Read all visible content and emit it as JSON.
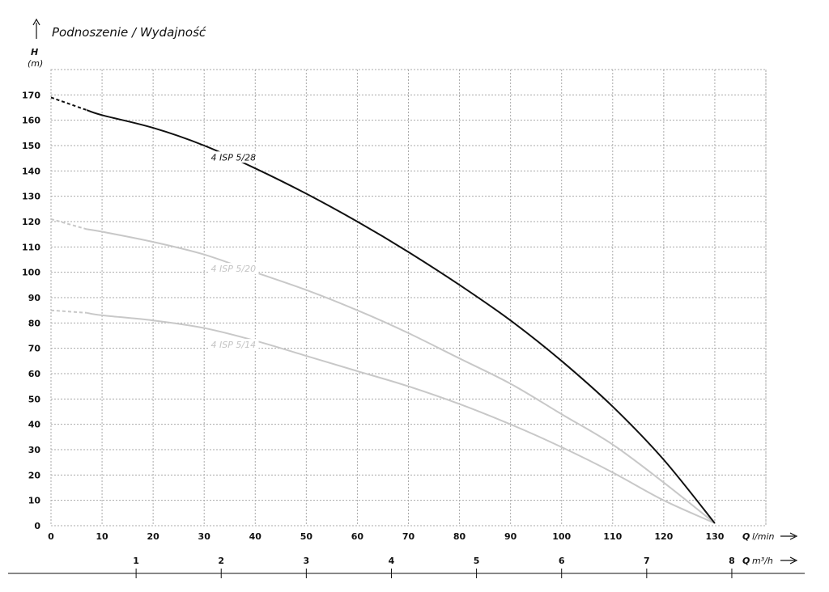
{
  "chart_data": {
    "type": "line",
    "title": "Podnoszenie / Wydajność",
    "ylabel": "H",
    "ylabel_unit": "(m)",
    "xlabel_prefix": "Q",
    "xlabel_unit": "l/min",
    "x2label_prefix": "Q",
    "x2label_unit": "m³/h",
    "xlim": [
      0,
      140
    ],
    "ylim": [
      0,
      180
    ],
    "x_ticks": [
      0,
      10,
      20,
      30,
      40,
      50,
      60,
      70,
      80,
      90,
      100,
      110,
      120,
      130
    ],
    "y_ticks": [
      0,
      10,
      20,
      30,
      40,
      50,
      60,
      70,
      80,
      90,
      100,
      110,
      120,
      130,
      140,
      150,
      160,
      170
    ],
    "x2_ticks": [
      1,
      2,
      3,
      4,
      5,
      6,
      7,
      8
    ],
    "grid": true,
    "series": [
      {
        "name": "4 ISP 5/28",
        "color": "#111111",
        "dashed_until": 7,
        "label_at": [
          31,
          148
        ],
        "x": [
          0,
          7,
          10,
          20,
          30,
          40,
          50,
          60,
          70,
          80,
          90,
          100,
          110,
          120,
          130
        ],
        "y": [
          169,
          164,
          162,
          157,
          150,
          141,
          131,
          120,
          108,
          95,
          81,
          65,
          47,
          26,
          1
        ]
      },
      {
        "name": "4 ISP 5/20",
        "color": "#c8c8c8",
        "dashed_until": 7,
        "label_at": [
          31,
          104
        ],
        "x": [
          0,
          7,
          10,
          20,
          30,
          40,
          50,
          60,
          70,
          80,
          90,
          100,
          110,
          120,
          130
        ],
        "y": [
          121,
          117,
          116,
          112,
          107,
          100,
          93,
          85,
          76,
          66,
          56,
          44,
          32,
          17,
          1
        ]
      },
      {
        "name": "4 ISP 5/14",
        "color": "#c8c8c8",
        "dashed_until": 7,
        "label_at": [
          31,
          74
        ],
        "x": [
          0,
          7,
          10,
          20,
          30,
          40,
          50,
          60,
          70,
          80,
          90,
          100,
          110,
          120,
          130
        ],
        "y": [
          85,
          84,
          83,
          81,
          78,
          73,
          67,
          61,
          55,
          48,
          40,
          31,
          21,
          10,
          1
        ]
      }
    ]
  }
}
